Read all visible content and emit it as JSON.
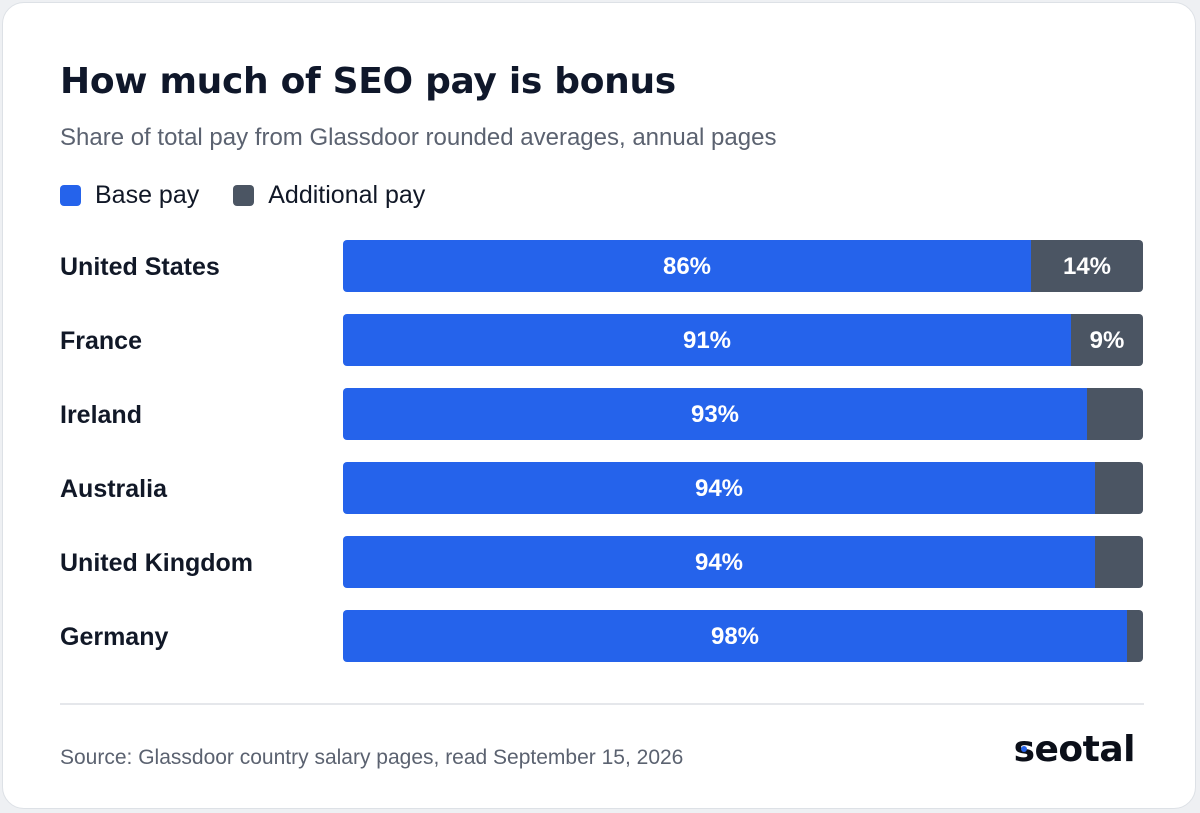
{
  "title": "How much of SEO pay is bonus",
  "subtitle": "Share of total pay from Glassdoor rounded averages, annual pages",
  "source": "Source: Glassdoor country salary pages, read September 15, 2026",
  "logo": "seotal",
  "colors": {
    "base": "#2563eb",
    "additional": "#4b5563",
    "label_text": "#ffffff"
  },
  "chart_data": {
    "type": "bar",
    "orientation": "horizontal",
    "stacked": true,
    "unit": "%",
    "xlim": [
      0,
      100
    ],
    "legend": "top-left",
    "grid": false,
    "categories": [
      "United States",
      "France",
      "Ireland",
      "Australia",
      "United Kingdom",
      "Germany"
    ],
    "series": [
      {
        "name": "Base pay",
        "values": [
          86,
          91,
          93,
          94,
          94,
          98
        ],
        "labels": [
          "86%",
          "91%",
          "93%",
          "94%",
          "94%",
          "98%"
        ]
      },
      {
        "name": "Additional pay",
        "values": [
          14,
          9,
          7,
          6,
          6,
          2
        ],
        "labels": [
          "14%",
          "9%",
          "",
          "",
          "",
          ""
        ]
      }
    ]
  }
}
